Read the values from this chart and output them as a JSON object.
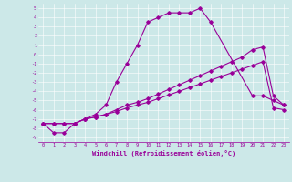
{
  "title": "",
  "xlabel": "Windchill (Refroidissement éolien,°C)",
  "ylabel": "",
  "bg_color": "#cce8e8",
  "line_color": "#990099",
  "grid_color": "#ffffff",
  "xlim": [
    -0.5,
    23.5
  ],
  "ylim": [
    -9.5,
    5.5
  ],
  "xticks": [
    0,
    1,
    2,
    3,
    4,
    5,
    6,
    7,
    8,
    9,
    10,
    11,
    12,
    13,
    14,
    15,
    16,
    17,
    18,
    19,
    20,
    21,
    22,
    23
  ],
  "yticks": [
    5,
    4,
    3,
    2,
    1,
    0,
    -1,
    -2,
    -3,
    -4,
    -5,
    -6,
    -7,
    -8,
    -9
  ],
  "line1_x": [
    0,
    1,
    2,
    3,
    4,
    5,
    6,
    7,
    8,
    9,
    10,
    11,
    12,
    13,
    14,
    15,
    16,
    20,
    21,
    22,
    23
  ],
  "line1_y": [
    -7.5,
    -8.5,
    -8.5,
    -7.5,
    -7,
    -6.5,
    -5.5,
    -3,
    -1,
    1,
    3.5,
    4,
    4.5,
    4.5,
    4.5,
    5,
    3.5,
    -4.5,
    -4.5,
    -5,
    -5.5
  ],
  "line2_x": [
    0,
    1,
    2,
    3,
    4,
    5,
    6,
    7,
    8,
    9,
    10,
    11,
    12,
    13,
    14,
    15,
    16,
    17,
    18,
    19,
    20,
    21,
    22,
    23
  ],
  "line2_y": [
    -7.5,
    -7.5,
    -7.5,
    -7.5,
    -7,
    -6.8,
    -6.5,
    -6,
    -5.5,
    -5.2,
    -4.8,
    -4.3,
    -3.8,
    -3.3,
    -2.8,
    -2.3,
    -1.8,
    -1.3,
    -0.8,
    -0.3,
    0.5,
    0.8,
    -4.5,
    -5.5
  ],
  "line3_x": [
    0,
    1,
    2,
    3,
    4,
    5,
    6,
    7,
    8,
    9,
    10,
    11,
    12,
    13,
    14,
    15,
    16,
    17,
    18,
    19,
    20,
    21,
    22,
    23
  ],
  "line3_y": [
    -7.5,
    -7.5,
    -7.5,
    -7.5,
    -7,
    -6.8,
    -6.5,
    -6.2,
    -5.8,
    -5.5,
    -5.2,
    -4.8,
    -4.4,
    -4,
    -3.6,
    -3.2,
    -2.8,
    -2.4,
    -2,
    -1.6,
    -1.2,
    -0.8,
    -5.8,
    -6
  ]
}
